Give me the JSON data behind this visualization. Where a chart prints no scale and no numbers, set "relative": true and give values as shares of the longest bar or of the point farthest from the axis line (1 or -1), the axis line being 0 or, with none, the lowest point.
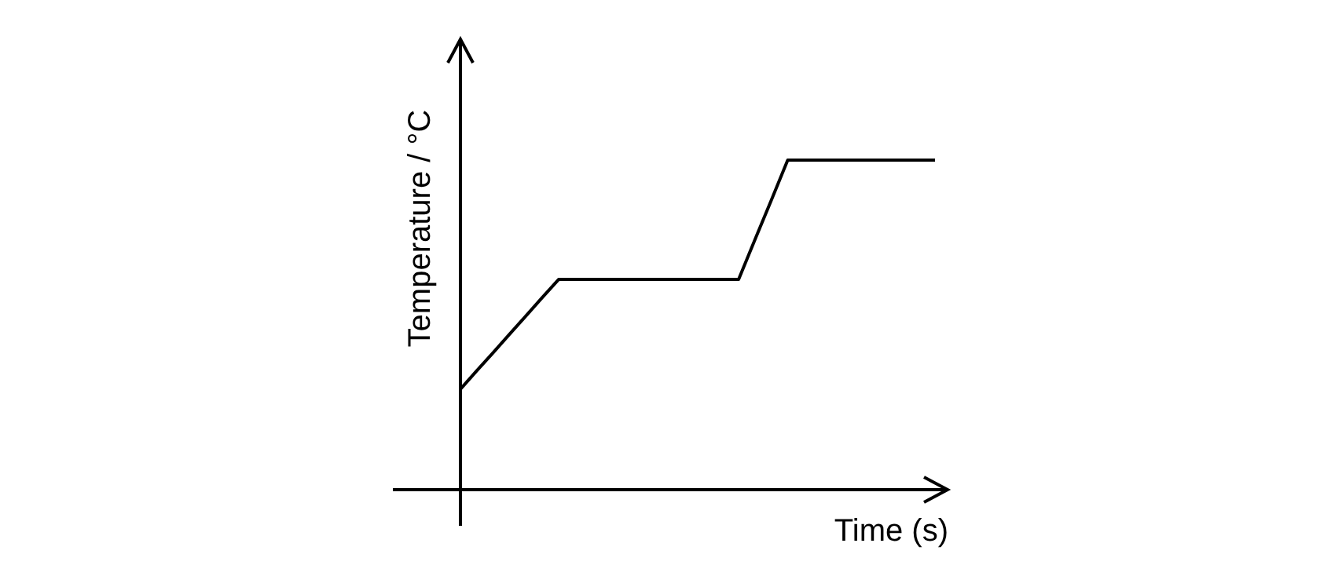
{
  "chart_data": {
    "type": "line",
    "relative": true,
    "xlabel": "Time (s)",
    "ylabel": "Temperature / °C",
    "categories": [
      null,
      null,
      null,
      null,
      null,
      null,
      null,
      null,
      null,
      null,
      null,
      null,
      null,
      null,
      null,
      null,
      null,
      null,
      null,
      null,
      null,
      null,
      null,
      null,
      null,
      null,
      null,
      null,
      null,
      null
    ],
    "series": [
      {
        "color": "#000000",
        "values": [
          0.305,
          0.361,
          0.416,
          0.472,
          0.527,
          0.583,
          0.638,
          0.638,
          0.638,
          0.638,
          0.638,
          0.638,
          0.638,
          0.638,
          0.638,
          0.638,
          0.638,
          0.638,
          0.759,
          0.879,
          1,
          1,
          1,
          1,
          1,
          1,
          1,
          1,
          1,
          1
        ]
      }
    ],
    "grid": false,
    "legend": false,
    "marker": "none"
  }
}
